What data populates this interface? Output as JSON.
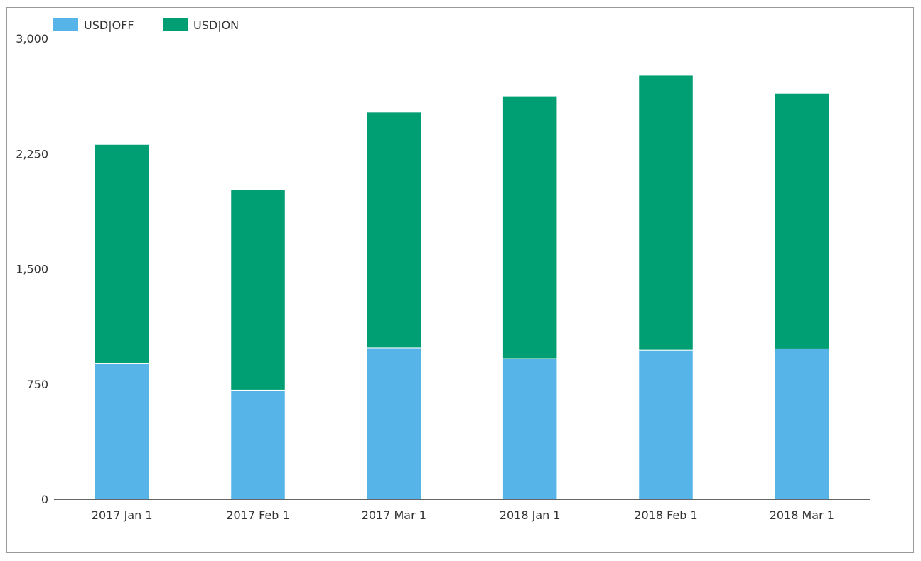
{
  "chart_data": {
    "type": "bar",
    "stacked": true,
    "title": "",
    "xlabel": "",
    "ylabel": "",
    "categories": [
      "2017 Jan 1",
      "2017 Feb 1",
      "2017 Mar 1",
      "2018 Jan 1",
      "2018 Feb 1",
      "2018 Mar 1"
    ],
    "series": [
      {
        "name": "USD|OFF",
        "color": "#56b4e9",
        "values": [
          885,
          710,
          985,
          915,
          970,
          978
        ]
      },
      {
        "name": "USD|ON",
        "color": "#009e73",
        "values": [
          1425,
          1305,
          1535,
          1710,
          1790,
          1665
        ]
      }
    ],
    "ylim": [
      0,
      3000
    ],
    "yticks": [
      0,
      750,
      1500,
      2250,
      3000
    ],
    "ytick_labels": [
      "0",
      "750",
      "1,500",
      "2,250",
      "3,000"
    ],
    "grid": false,
    "legend_position": "top-left"
  }
}
